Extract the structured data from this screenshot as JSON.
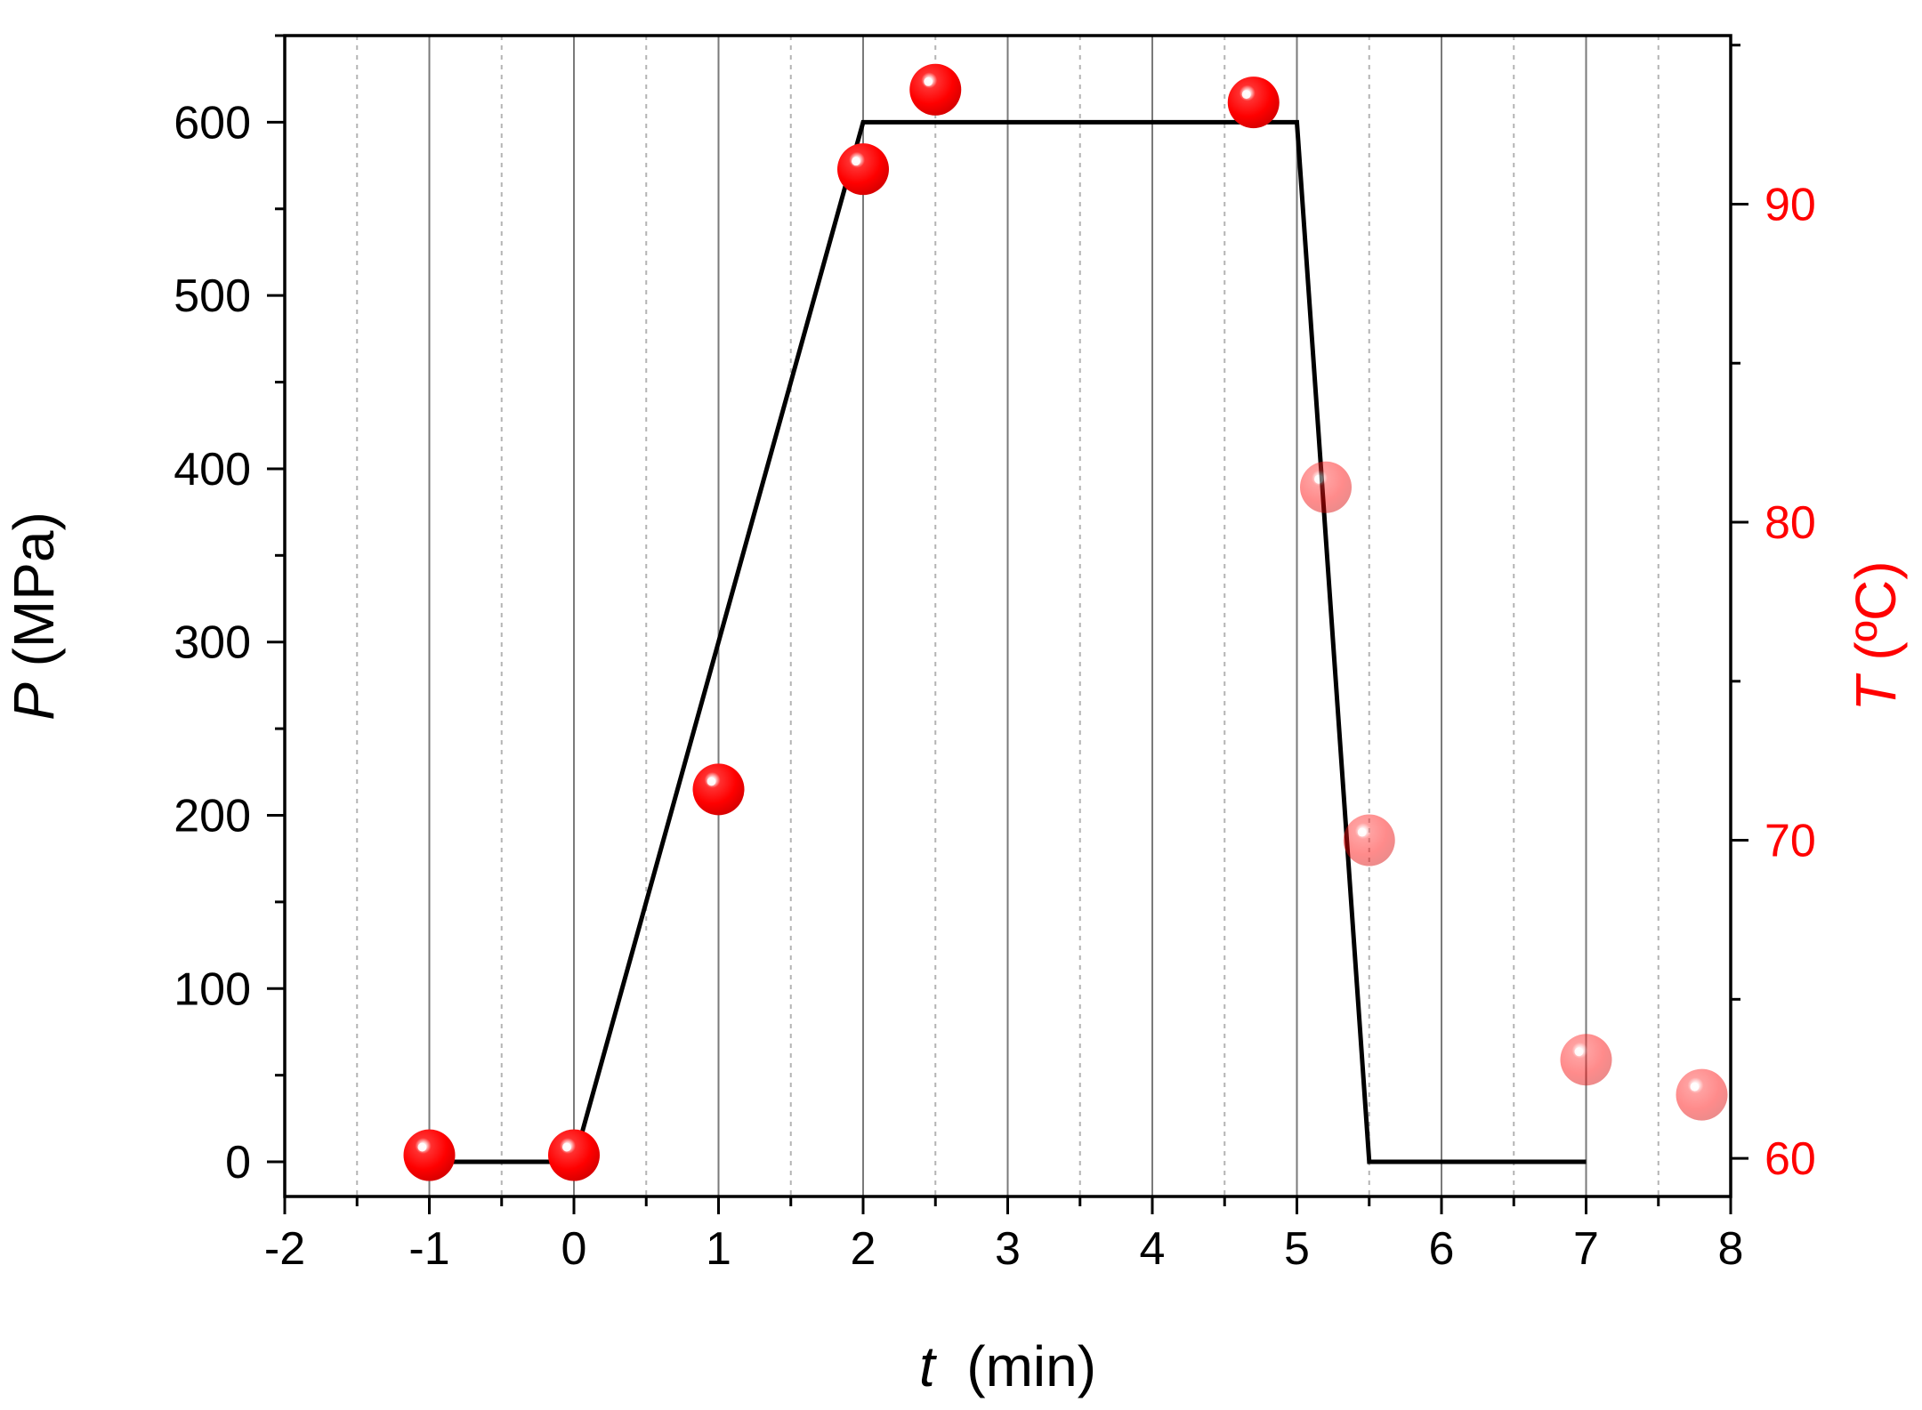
{
  "chart_data": {
    "type": "line+scatter",
    "x_axis": {
      "label_var": "t",
      "label_unit": "(min)",
      "range": [
        -2,
        8
      ],
      "ticks": [
        -2,
        -1,
        0,
        1,
        2,
        3,
        4,
        5,
        6,
        7,
        8
      ],
      "tick_labels": [
        "-2",
        "-1",
        "0",
        "1",
        "2",
        "3",
        "4",
        "5",
        "6",
        "7",
        "8"
      ],
      "grid": "major solid, minor dashed"
    },
    "y_axis_left": {
      "label_var": "P",
      "label_unit": "(MPa)",
      "range": [
        -20,
        650
      ],
      "ticks": [
        0,
        100,
        200,
        300,
        400,
        500,
        600
      ],
      "tick_labels": [
        "0",
        "100",
        "200",
        "300",
        "400",
        "500",
        "600"
      ]
    },
    "y_axis_right": {
      "label_var": "T",
      "label_unit": "(ºC)",
      "range": [
        58.8,
        95.3
      ],
      "ticks": [
        60,
        70,
        80,
        90
      ],
      "tick_labels": [
        "60",
        "70",
        "80",
        "90"
      ],
      "color": "#ff0000"
    },
    "series": [
      {
        "axis": "left",
        "style": "line",
        "color": "#000000",
        "x": [
          -1,
          0,
          2,
          5,
          5.5,
          7
        ],
        "y": [
          0,
          0,
          600,
          600,
          0,
          0
        ]
      },
      {
        "axis": "right",
        "style": "markers",
        "color": "#ff0000",
        "points": [
          {
            "x": -1,
            "y": 60.1,
            "faded": false
          },
          {
            "x": 0,
            "y": 60.1,
            "faded": false
          },
          {
            "x": 1,
            "y": 71.6,
            "faded": false
          },
          {
            "x": 2,
            "y": 91.1,
            "faded": false
          },
          {
            "x": 2.5,
            "y": 93.6,
            "faded": false
          },
          {
            "x": 4.7,
            "y": 93.2,
            "faded": false
          },
          {
            "x": 5.2,
            "y": 81.1,
            "faded": true
          },
          {
            "x": 5.5,
            "y": 70.0,
            "faded": true
          },
          {
            "x": 7,
            "y": 63.1,
            "faded": true
          },
          {
            "x": 7.8,
            "y": 62.0,
            "faded": true
          }
        ]
      }
    ]
  }
}
